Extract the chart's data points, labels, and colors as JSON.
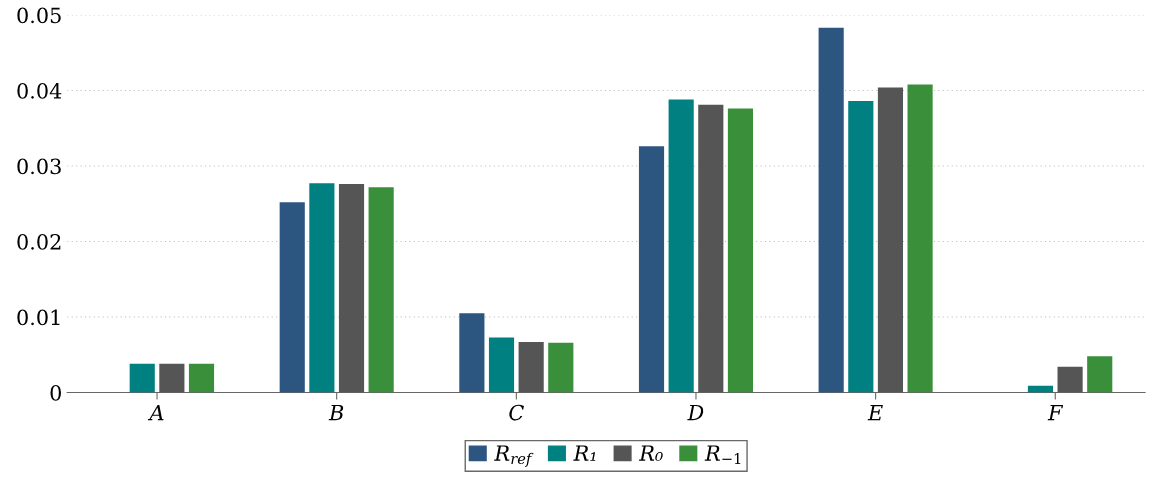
{
  "chart_data": {
    "type": "bar",
    "categories": [
      "A",
      "B",
      "C",
      "D",
      "E",
      "F"
    ],
    "series": [
      {
        "name": "R$_{ref}$",
        "color": "#2c5580",
        "values": [
          0,
          0.0252,
          0.0105,
          0.0326,
          0.0483,
          0
        ]
      },
      {
        "name": "R₁",
        "color": "#008080",
        "values": [
          0.0038,
          0.0277,
          0.0073,
          0.0388,
          0.0386,
          0.0009
        ]
      },
      {
        "name": "R₀",
        "color": "#555555",
        "values": [
          0.0038,
          0.0276,
          0.0067,
          0.0381,
          0.0404,
          0.0034
        ]
      },
      {
        "name": "R$_{−1}$",
        "color": "#3a8f3a",
        "values": [
          0.0038,
          0.0272,
          0.0066,
          0.0376,
          0.0408,
          0.0048
        ]
      }
    ],
    "ylim": [
      0,
      0.05
    ],
    "yticks": [
      0,
      0.01,
      0.02,
      0.03,
      0.04,
      0.05
    ],
    "grid": "y",
    "legend": "bottom"
  }
}
